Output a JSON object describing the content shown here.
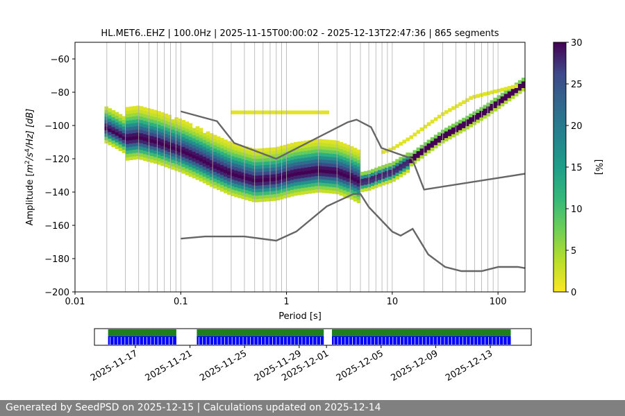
{
  "chart_data": {
    "type": "heatmap",
    "title": "HL.MET6..EHZ | 100.0Hz | 2025-11-15T00:00:02 - 2025-12-13T22:47:36 | 865 segments",
    "xlabel": "Period [s]",
    "ylabel": "Amplitude [m²/s⁴/Hz] [dB]",
    "ylabel_parts": {
      "pre": "Amplitude [",
      "m": "m",
      "exp2": "2",
      "mid": "/s",
      "exp4": "4",
      "post": "/Hz] [dB]"
    },
    "x_scale": "log",
    "xlim": [
      0.01,
      180
    ],
    "ylim": [
      -200,
      -50
    ],
    "x_ticks": [
      0.01,
      0.1,
      1,
      10,
      100
    ],
    "x_tick_labels": [
      "0.01",
      "0.1",
      "1",
      "10",
      "100"
    ],
    "y_ticks": [
      -200,
      -180,
      -160,
      -140,
      -120,
      -100,
      -80,
      -60
    ],
    "y_tick_labels": [
      "−200",
      "−180",
      "−160",
      "−140",
      "−120",
      "−100",
      "−80",
      "−60"
    ],
    "grid": true,
    "colormap": "viridis_r",
    "colorbar": {
      "label": "[%]",
      "range": [
        0,
        30
      ],
      "ticks": [
        0,
        5,
        10,
        15,
        20,
        25,
        30
      ],
      "tick_labels": [
        "0",
        "5",
        "10",
        "15",
        "20",
        "25",
        "30"
      ]
    },
    "mode_curve": [
      {
        "period": 0.019,
        "db": -102
      },
      {
        "period": 0.025,
        "db": -106
      },
      {
        "period": 0.03,
        "db": -109
      },
      {
        "period": 0.04,
        "db": -108
      },
      {
        "period": 0.06,
        "db": -111
      },
      {
        "period": 0.1,
        "db": -116
      },
      {
        "period": 0.15,
        "db": -121
      },
      {
        "period": 0.2,
        "db": -125
      },
      {
        "period": 0.3,
        "db": -130
      },
      {
        "period": 0.5,
        "db": -134
      },
      {
        "period": 0.8,
        "db": -133
      },
      {
        "period": 1.2,
        "db": -130
      },
      {
        "period": 2,
        "db": -128
      },
      {
        "period": 3,
        "db": -129
      },
      {
        "period": 4,
        "db": -132
      },
      {
        "period": 5,
        "db": -135
      },
      {
        "period": 6,
        "db": -134
      },
      {
        "period": 8,
        "db": -131
      },
      {
        "period": 10,
        "db": -129
      },
      {
        "period": 15,
        "db": -122
      },
      {
        "period": 20,
        "db": -116
      },
      {
        "period": 30,
        "db": -108
      },
      {
        "period": 50,
        "db": -100
      },
      {
        "period": 80,
        "db": -92
      },
      {
        "period": 120,
        "db": -84
      },
      {
        "period": 180,
        "db": -76
      }
    ],
    "nhnm": [
      {
        "period": 0.1,
        "db": -91.5
      },
      {
        "period": 0.22,
        "db": -97.4
      },
      {
        "period": 0.32,
        "db": -110.5
      },
      {
        "period": 0.8,
        "db": -120
      },
      {
        "period": 3.8,
        "db": -98
      },
      {
        "period": 4.6,
        "db": -96.5
      },
      {
        "period": 6.3,
        "db": -101
      },
      {
        "period": 7.9,
        "db": -113.5
      },
      {
        "period": 15.4,
        "db": -120
      },
      {
        "period": 20,
        "db": -138.5
      },
      {
        "period": 180,
        "db": -129
      }
    ],
    "nlnm": [
      {
        "period": 0.1,
        "db": -168
      },
      {
        "period": 0.17,
        "db": -166.7
      },
      {
        "period": 0.4,
        "db": -166.7
      },
      {
        "period": 0.8,
        "db": -169.2
      },
      {
        "period": 1.24,
        "db": -163.7
      },
      {
        "period": 2.4,
        "db": -148.6
      },
      {
        "period": 4.3,
        "db": -141.1
      },
      {
        "period": 5,
        "db": -141.1
      },
      {
        "period": 6,
        "db": -149
      },
      {
        "period": 10,
        "db": -163.8
      },
      {
        "period": 12,
        "db": -166.2
      },
      {
        "period": 15.6,
        "db": -162.1
      },
      {
        "period": 21.9,
        "db": -177.5
      },
      {
        "period": 31.6,
        "db": -185
      },
      {
        "period": 45,
        "db": -187.5
      },
      {
        "period": 70,
        "db": -187.5
      },
      {
        "period": 101,
        "db": -185
      },
      {
        "period": 154,
        "db": -185
      },
      {
        "period": 180,
        "db": -185.7
      }
    ]
  },
  "timeline": {
    "date_labels": [
      "2025-11-17",
      "2025-11-21",
      "2025-11-25",
      "2025-11-29",
      "2025-12-01",
      "2025-12-05",
      "2025-12-09",
      "2025-12-13"
    ],
    "range": [
      "2025-11-14",
      "2025-12-16"
    ],
    "coverage_color": "#1f7f1f",
    "data_color": "#0000ff",
    "segments": [
      {
        "start": "2025-11-15",
        "end": "2025-11-20"
      },
      {
        "start": "2025-11-21.5",
        "end": "2025-11-30.8"
      },
      {
        "start": "2025-12-01.4",
        "end": "2025-12-14.5"
      }
    ]
  },
  "footer": {
    "text": "Generated by SeedPSD on 2025-12-15 | Calculations updated on 2025-12-14"
  },
  "colors": {
    "noise_model": "#666666",
    "grid": "#b0b0b0",
    "footer_bg": "#808080"
  }
}
